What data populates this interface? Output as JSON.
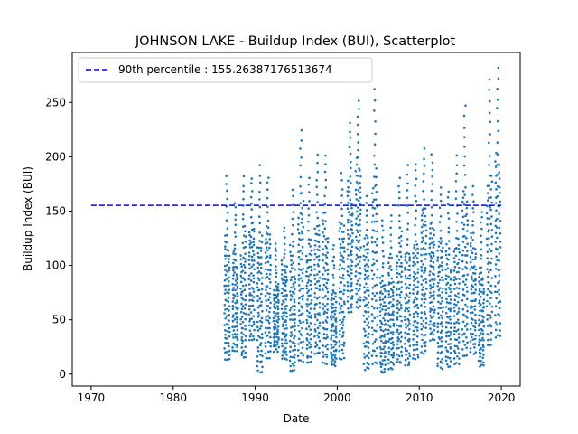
{
  "chart_data": {
    "type": "scatter",
    "title": "JOHNSON LAKE - Buildup Index (BUI), Scatterplot",
    "xlabel": "Date",
    "ylabel": "Buildup Index (BUI)",
    "xlim": [
      1967.7,
      2022.3
    ],
    "ylim": [
      -11,
      296
    ],
    "xticks": [
      1970,
      1980,
      1990,
      2000,
      2010,
      2020
    ],
    "yticks": [
      0,
      50,
      100,
      150,
      200,
      250
    ],
    "grid": false,
    "legend_position": "upper-left",
    "point_color": "#1f77b4",
    "reference_line": {
      "label": "90th percentile : 155.26387176513674",
      "value": 155.26387176513674,
      "x_start": 1970,
      "x_end": 2020,
      "color": "#0000ff",
      "style": "dashed"
    },
    "seasons": [
      {
        "year": 1986,
        "min": 14,
        "peak": 181
      },
      {
        "year": 1987,
        "min": 22,
        "peak": 158
      },
      {
        "year": 1988,
        "min": 16,
        "peak": 181
      },
      {
        "year": 1989,
        "min": 32,
        "peak": 181
      },
      {
        "year": 1990,
        "min": 3,
        "peak": 191
      },
      {
        "year": 1991,
        "min": 15,
        "peak": 182
      },
      {
        "year": 1992,
        "min": 22,
        "peak": 120
      },
      {
        "year": 1993,
        "min": 14,
        "peak": 135
      },
      {
        "year": 1994,
        "min": 3,
        "peak": 170
      },
      {
        "year": 1995,
        "min": 12,
        "peak": 225
      },
      {
        "year": 1996,
        "min": 10,
        "peak": 180
      },
      {
        "year": 1997,
        "min": 20,
        "peak": 201
      },
      {
        "year": 1998,
        "min": 10,
        "peak": 202
      },
      {
        "year": 1999,
        "min": 8,
        "peak": 118
      },
      {
        "year": 2000,
        "min": 15,
        "peak": 185
      },
      {
        "year": 2001,
        "min": 56,
        "peak": 231
      },
      {
        "year": 2002,
        "min": 62,
        "peak": 251
      },
      {
        "year": 2003,
        "min": 5,
        "peak": 165
      },
      {
        "year": 2004,
        "min": 10,
        "peak": 263
      },
      {
        "year": 2005,
        "min": 2,
        "peak": 142
      },
      {
        "year": 2006,
        "min": 5,
        "peak": 145
      },
      {
        "year": 2007,
        "min": 11,
        "peak": 181
      },
      {
        "year": 2008,
        "min": 8,
        "peak": 191
      },
      {
        "year": 2009,
        "min": 14,
        "peak": 194
      },
      {
        "year": 2010,
        "min": 20,
        "peak": 206
      },
      {
        "year": 2011,
        "min": 32,
        "peak": 201
      },
      {
        "year": 2012,
        "min": 6,
        "peak": 173
      },
      {
        "year": 2013,
        "min": 8,
        "peak": 168
      },
      {
        "year": 2014,
        "min": 10,
        "peak": 200
      },
      {
        "year": 2015,
        "min": 18,
        "peak": 246
      },
      {
        "year": 2016,
        "min": 20,
        "peak": 172
      },
      {
        "year": 2017,
        "min": 8,
        "peak": 150
      },
      {
        "year": 2018,
        "min": 26,
        "peak": 270
      },
      {
        "year": 2019,
        "min": 35,
        "peak": 283
      }
    ]
  }
}
